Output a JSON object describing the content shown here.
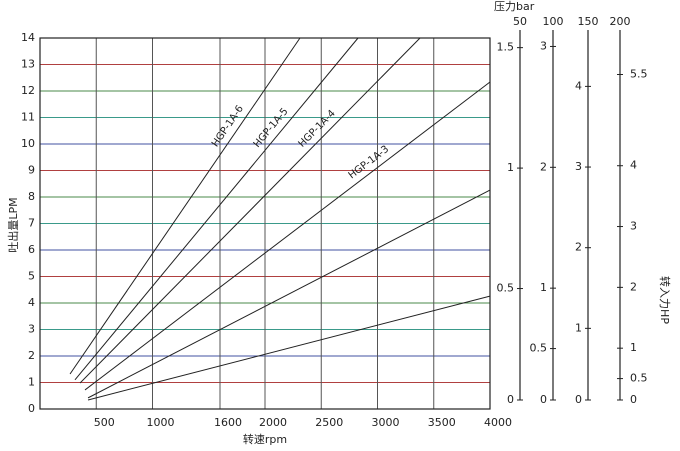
{
  "chart_data": {
    "type": "line",
    "x_label": "转速rpm",
    "y_label": "吐出量LPM",
    "xlim": [
      0,
      4000
    ],
    "xticks": [
      500,
      1000,
      1600,
      2000,
      2500,
      3000,
      3500,
      4000
    ],
    "ylim": [
      0,
      14
    ],
    "yticks": [
      0,
      1,
      2,
      3,
      4,
      5,
      6,
      7,
      8,
      9,
      10,
      11,
      12,
      13,
      14
    ],
    "grid": true,
    "color": "#222222",
    "series": [
      {
        "name": "HGP-1A-6",
        "x": [
          267,
          2311
        ],
        "values": [
          1.32,
          14
        ]
      },
      {
        "name": "HGP-1A-5",
        "x": [
          311,
          2827
        ],
        "values": [
          1.1,
          14
        ]
      },
      {
        "name": "HGP-1A-4",
        "x": [
          356,
          3378
        ],
        "values": [
          0.98,
          14
        ]
      },
      {
        "name": "HGP-1A-3",
        "x": [
          400,
          4000
        ],
        "values": [
          0.72,
          12.34
        ]
      },
      {
        "x": [
          427,
          4000
        ],
        "values": [
          0.42,
          8.26
        ]
      },
      {
        "x": [
          427,
          4000
        ],
        "values": [
          0.34,
          4.26
        ]
      }
    ],
    "scales_title": "压力bar",
    "scales_label": "转入力HP",
    "scales": [
      {
        "header": 50,
        "ylim": [
          0,
          1.54
        ],
        "ticks": [
          0,
          0.5,
          1,
          1.5
        ]
      },
      {
        "header": 100,
        "ylim": [
          0,
          3.07
        ],
        "ticks": [
          0,
          0.5,
          1,
          2,
          3
        ]
      },
      {
        "header": 150,
        "ylim": [
          0,
          4.6
        ],
        "ticks": [
          0,
          1,
          2,
          3,
          4
        ]
      },
      {
        "header": 200,
        "ylim": [
          0,
          6.1
        ],
        "ticks": [
          0,
          0.5,
          1,
          2,
          3,
          4,
          5.5
        ]
      }
    ]
  }
}
